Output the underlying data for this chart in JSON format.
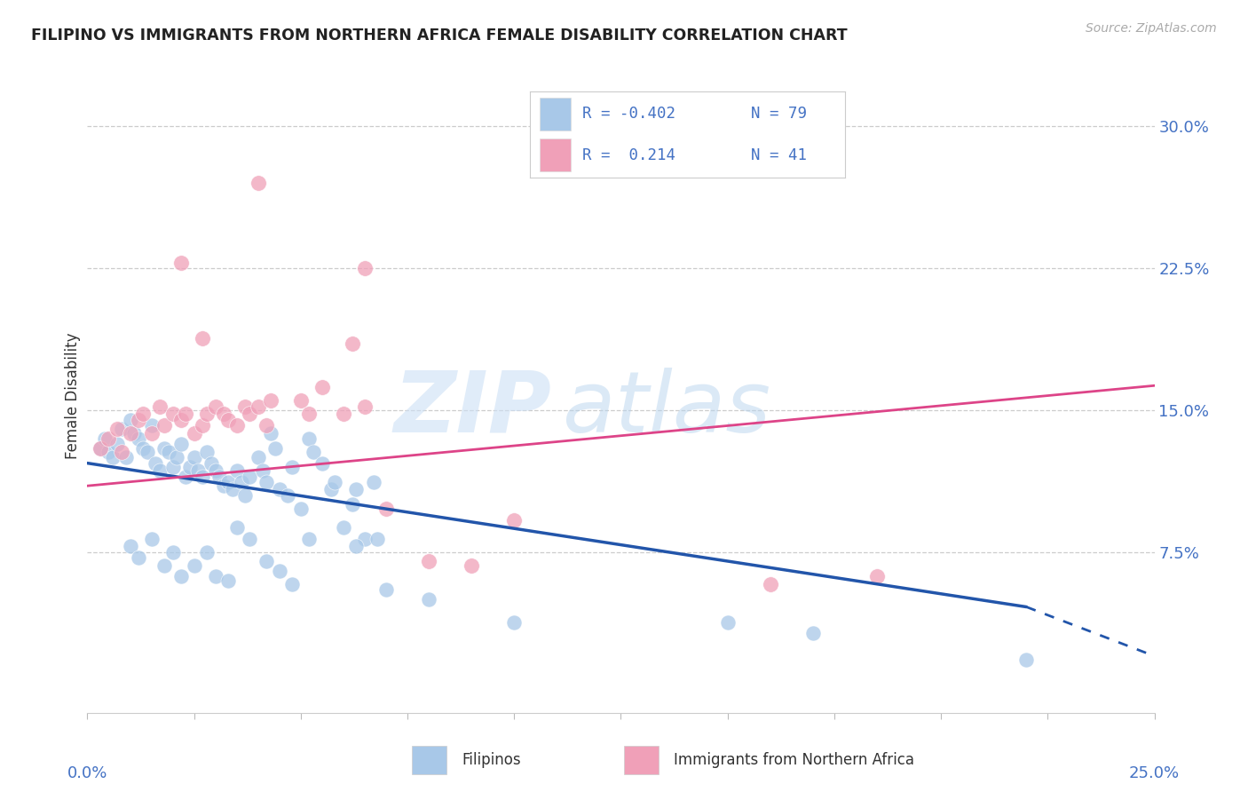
{
  "title": "FILIPINO VS IMMIGRANTS FROM NORTHERN AFRICA FEMALE DISABILITY CORRELATION CHART",
  "source": "Source: ZipAtlas.com",
  "ylabel": "Female Disability",
  "watermark_zip": "ZIP",
  "watermark_atlas": "atlas",
  "blue_color": "#a8c8e8",
  "pink_color": "#f0a0b8",
  "blue_line_color": "#2255aa",
  "pink_line_color": "#dd4488",
  "label_color": "#4472c4",
  "legend_blue_r": "-0.402",
  "legend_blue_n": "79",
  "legend_pink_r": "0.214",
  "legend_pink_n": "41",
  "xlim": [
    0.0,
    0.25
  ],
  "ylim": [
    -0.01,
    0.325
  ],
  "yticks": [
    0.075,
    0.15,
    0.225,
    0.3
  ],
  "ytick_labels": [
    "7.5%",
    "15.0%",
    "22.5%",
    "30.0%"
  ],
  "blue_line_x0": 0.0,
  "blue_line_y0": 0.122,
  "blue_line_x1": 0.22,
  "blue_line_y1": 0.046,
  "blue_line_x2": 0.25,
  "blue_line_y2": 0.02,
  "pink_line_x0": 0.0,
  "pink_line_y0": 0.11,
  "pink_line_x1": 0.25,
  "pink_line_y1": 0.163,
  "blue_x": [
    0.003,
    0.004,
    0.005,
    0.006,
    0.007,
    0.008,
    0.009,
    0.01,
    0.011,
    0.012,
    0.013,
    0.014,
    0.015,
    0.016,
    0.017,
    0.018,
    0.019,
    0.02,
    0.021,
    0.022,
    0.023,
    0.024,
    0.025,
    0.026,
    0.027,
    0.028,
    0.029,
    0.03,
    0.031,
    0.032,
    0.033,
    0.034,
    0.035,
    0.036,
    0.037,
    0.038,
    0.04,
    0.041,
    0.042,
    0.043,
    0.044,
    0.045,
    0.047,
    0.048,
    0.05,
    0.052,
    0.053,
    0.055,
    0.057,
    0.058,
    0.06,
    0.062,
    0.063,
    0.065,
    0.067,
    0.068,
    0.01,
    0.012,
    0.015,
    0.018,
    0.02,
    0.022,
    0.025,
    0.028,
    0.03,
    0.033,
    0.035,
    0.038,
    0.042,
    0.045,
    0.048,
    0.052,
    0.063,
    0.07,
    0.08,
    0.1,
    0.15,
    0.17,
    0.22
  ],
  "blue_y": [
    0.13,
    0.135,
    0.128,
    0.125,
    0.132,
    0.14,
    0.125,
    0.145,
    0.138,
    0.135,
    0.13,
    0.128,
    0.142,
    0.122,
    0.118,
    0.13,
    0.128,
    0.12,
    0.125,
    0.132,
    0.115,
    0.12,
    0.125,
    0.118,
    0.115,
    0.128,
    0.122,
    0.118,
    0.115,
    0.11,
    0.112,
    0.108,
    0.118,
    0.112,
    0.105,
    0.115,
    0.125,
    0.118,
    0.112,
    0.138,
    0.13,
    0.108,
    0.105,
    0.12,
    0.098,
    0.135,
    0.128,
    0.122,
    0.108,
    0.112,
    0.088,
    0.1,
    0.108,
    0.082,
    0.112,
    0.082,
    0.078,
    0.072,
    0.082,
    0.068,
    0.075,
    0.062,
    0.068,
    0.075,
    0.062,
    0.06,
    0.088,
    0.082,
    0.07,
    0.065,
    0.058,
    0.082,
    0.078,
    0.055,
    0.05,
    0.038,
    0.038,
    0.032,
    0.018
  ],
  "pink_x": [
    0.003,
    0.005,
    0.007,
    0.008,
    0.01,
    0.012,
    0.013,
    0.015,
    0.017,
    0.018,
    0.02,
    0.022,
    0.023,
    0.025,
    0.027,
    0.028,
    0.03,
    0.032,
    0.033,
    0.035,
    0.037,
    0.038,
    0.04,
    0.042,
    0.043,
    0.022,
    0.027,
    0.04,
    0.065,
    0.05,
    0.052,
    0.055,
    0.06,
    0.062,
    0.065,
    0.07,
    0.08,
    0.09,
    0.1,
    0.16,
    0.185
  ],
  "pink_y": [
    0.13,
    0.135,
    0.14,
    0.128,
    0.138,
    0.145,
    0.148,
    0.138,
    0.152,
    0.142,
    0.148,
    0.145,
    0.148,
    0.138,
    0.142,
    0.148,
    0.152,
    0.148,
    0.145,
    0.142,
    0.152,
    0.148,
    0.152,
    0.142,
    0.155,
    0.228,
    0.188,
    0.27,
    0.225,
    0.155,
    0.148,
    0.162,
    0.148,
    0.185,
    0.152,
    0.098,
    0.07,
    0.068,
    0.092,
    0.058,
    0.062
  ]
}
